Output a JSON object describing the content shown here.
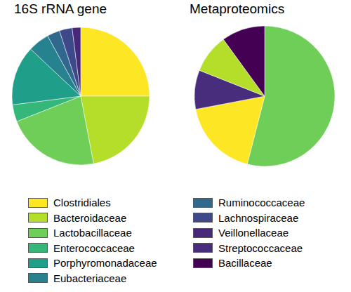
{
  "chart_data": [
    {
      "type": "pie",
      "title": "16S rRNA gene",
      "legend": "bottom",
      "categories": [
        "Clostridiales",
        "Bacteroidaceae",
        "Lactobacillaceae",
        "Enterococcaceae",
        "Porphyromonadaceae",
        "Eubacteriaceae",
        "Ruminococcaceae",
        "Lachnospiraceae",
        "Veillonellaceae"
      ],
      "values": [
        25,
        22,
        22,
        4,
        14,
        5,
        3,
        3,
        2
      ],
      "colors": [
        "#fde725",
        "#b5de2b",
        "#6ece58",
        "#35b779",
        "#1f9e89",
        "#26828e",
        "#31688e",
        "#3e4989",
        "#482878"
      ]
    },
    {
      "type": "pie",
      "title": "Metaproteomics",
      "legend": "bottom",
      "categories": [
        "Lactobacillaceae",
        "Clostridiales",
        "Streptococcaceae",
        "Bacteroidaceae",
        "Bacillaceae"
      ],
      "values": [
        54,
        18,
        9,
        9,
        10
      ],
      "colors": [
        "#6ece58",
        "#fde725",
        "#472d7b",
        "#b5de2b",
        "#440154"
      ]
    }
  ]
}
